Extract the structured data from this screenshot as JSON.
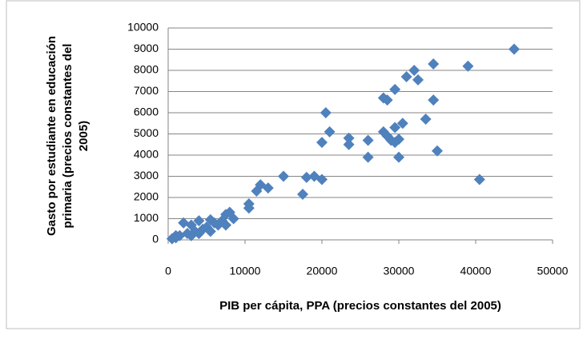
{
  "chart_data": {
    "type": "scatter",
    "xlabel": "PIB per cápita, PPA (precios constantes del 2005)",
    "ylabel": [
      "Gasto por estudiante en educación",
      "primaria (precios constantes del",
      "2005)"
    ],
    "color": "#4f81bd",
    "x": [
      45000,
      39000,
      34500,
      32000,
      31000,
      32500,
      29500,
      28000,
      28500,
      34500,
      20500,
      33500,
      21000,
      30500,
      29500,
      28000,
      28500,
      29000,
      30000,
      29500,
      26000,
      23500,
      23500,
      20000,
      35000,
      26000,
      30000,
      40500,
      15000,
      18000,
      19000,
      20000,
      17500,
      12000,
      13000,
      11500,
      10500,
      10500,
      8000,
      7500,
      8500,
      7000,
      7500,
      6000,
      5500,
      5000,
      4000,
      4500,
      3500,
      3000,
      2000,
      2500,
      1500,
      1000,
      500,
      3000,
      4000,
      5500,
      6500,
      1000
    ],
    "values": [
      9000,
      8200,
      8300,
      8000,
      7700,
      7550,
      7100,
      6700,
      6600,
      6600,
      6000,
      5700,
      5100,
      5500,
      5300,
      5100,
      4900,
      4700,
      4750,
      4600,
      4700,
      4800,
      4500,
      4600,
      4200,
      3900,
      3900,
      2850,
      3000,
      2950,
      3000,
      2850,
      2150,
      2600,
      2450,
      2300,
      1700,
      1500,
      1300,
      1200,
      1000,
      900,
      700,
      800,
      950,
      600,
      900,
      500,
      400,
      700,
      800,
      300,
      200,
      100,
      50,
      200,
      300,
      400,
      700,
      200
    ],
    "xlim": [
      0,
      50000
    ],
    "xticks": [
      0,
      10000,
      20000,
      30000,
      40000,
      50000
    ],
    "ylim": [
      0,
      10000
    ],
    "yticks": [
      0,
      1000,
      2000,
      3000,
      4000,
      5000,
      6000,
      7000,
      8000,
      9000,
      10000
    ],
    "grid": true
  }
}
